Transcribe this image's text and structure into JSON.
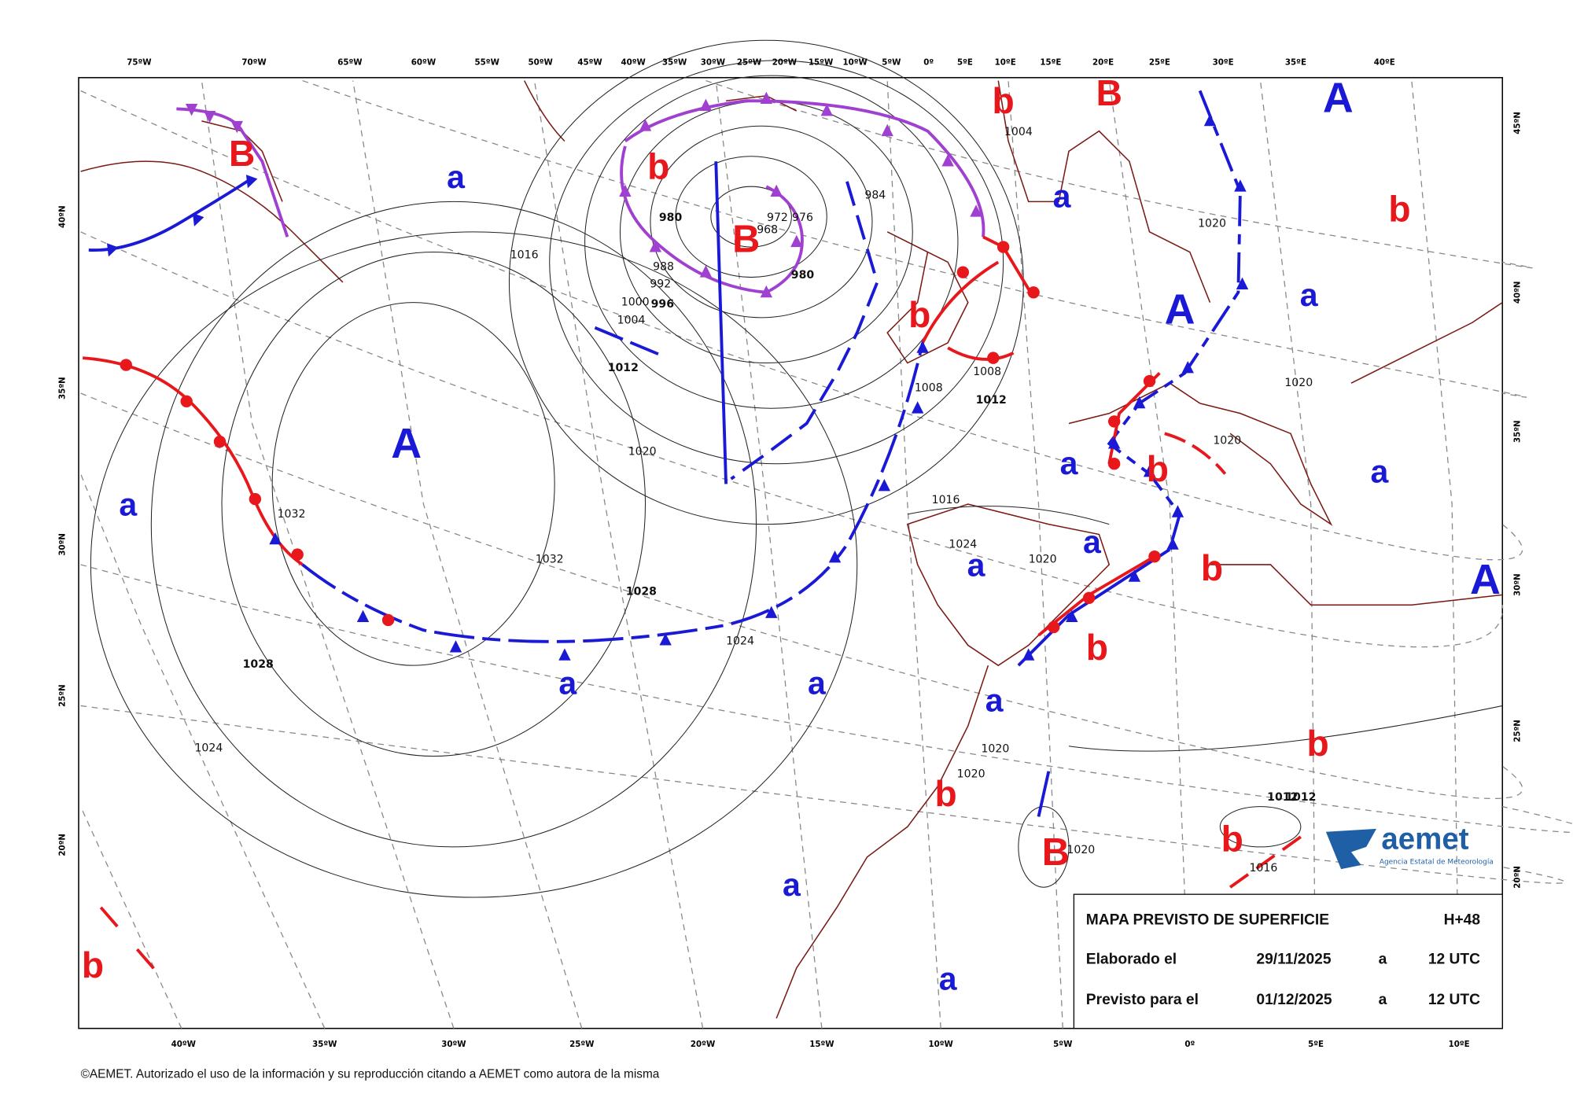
{
  "header": {
    "top_longitudes": [
      "75ºW",
      "70ºW",
      "65ºW",
      "60ºW",
      "55ºW",
      "50ºW",
      "45ºW",
      "40ºW",
      "35ºW",
      "30ºW",
      "25ºW",
      "20ºW",
      "15ºW",
      "10ºW",
      "5ºW",
      "0º",
      "5ºE",
      "10ºE",
      "15ºE",
      "20ºE",
      "25ºE",
      "30ºE",
      "35ºE",
      "40ºE"
    ],
    "bottom_longitudes": [
      "40ºW",
      "35ºW",
      "30ºW",
      "25ºW",
      "20ºW",
      "15ºW",
      "10ºW",
      "5ºW",
      "0º",
      "5ºE",
      "10ºE"
    ],
    "left_latitudes": [
      "40ºN",
      "35ºN",
      "30ºN",
      "25ºN",
      "20ºN"
    ],
    "right_latitudes": [
      "45ºN",
      "40ºN",
      "35ºN",
      "30ºN",
      "25ºN",
      "20ºN"
    ]
  },
  "centers": [
    {
      "label": "A",
      "color": "#1a1ad6"
    },
    {
      "label": "a",
      "color": "#1a1ad6"
    },
    {
      "label": "a",
      "color": "#1a1ad6"
    },
    {
      "label": "a",
      "color": "#1a1ad6"
    },
    {
      "label": "a",
      "color": "#1a1ad6"
    },
    {
      "label": "a",
      "color": "#1a1ad6"
    },
    {
      "label": "a",
      "color": "#1a1ad6"
    },
    {
      "label": "a",
      "color": "#1a1ad6"
    },
    {
      "label": "a",
      "color": "#1a1ad6"
    },
    {
      "label": "a",
      "color": "#1a1ad6"
    },
    {
      "label": "a",
      "color": "#1a1ad6"
    },
    {
      "label": "a",
      "color": "#1a1ad6"
    },
    {
      "label": "a",
      "color": "#1a1ad6"
    },
    {
      "label": "a",
      "color": "#1a1ad6"
    },
    {
      "label": "A",
      "color": "#1a1ad6"
    },
    {
      "label": "A",
      "color": "#1a1ad6"
    },
    {
      "label": "A",
      "color": "#1a1ad6"
    },
    {
      "label": "B",
      "color": "#e8171c"
    },
    {
      "label": "B",
      "color": "#e8171c"
    },
    {
      "label": "B",
      "color": "#e8171c"
    },
    {
      "label": "B",
      "color": "#e8171c"
    },
    {
      "label": "b",
      "color": "#e8171c"
    },
    {
      "label": "b",
      "color": "#e8171c"
    },
    {
      "label": "b",
      "color": "#e8171c"
    },
    {
      "label": "b",
      "color": "#e8171c"
    },
    {
      "label": "b",
      "color": "#e8171c"
    },
    {
      "label": "b",
      "color": "#e8171c"
    },
    {
      "label": "b",
      "color": "#e8171c"
    },
    {
      "label": "b",
      "color": "#e8171c"
    },
    {
      "label": "b",
      "color": "#e8171c"
    },
    {
      "label": "b",
      "color": "#e8171c"
    },
    {
      "label": "b",
      "color": "#e8171c"
    }
  ],
  "isobar_labels": [
    "1016",
    "1032",
    "1032",
    "1028",
    "1028",
    "1024",
    "1024",
    "1020",
    "1012",
    "1008",
    "1004",
    "1000",
    "996",
    "992",
    "988",
    "980",
    "980",
    "984",
    "972",
    "976",
    "968",
    "1004",
    "1008",
    "1012",
    "1016",
    "1020",
    "1024",
    "1020",
    "1020",
    "1012",
    "1016",
    "1012",
    "1020",
    "1020",
    "1020",
    "1020"
  ],
  "info_box": {
    "title": "MAPA PREVISTO DE SUPERFICIE",
    "step": "H+48",
    "row1": [
      "Elaborado el",
      "29/11/2025",
      "a",
      "12 UTC"
    ],
    "row2": [
      "Previsto para el",
      "01/12/2025",
      "a",
      "12 UTC"
    ]
  },
  "logo": {
    "name": "aemet",
    "subtitle": "Agencia Estatal de Meteorología"
  },
  "copyright": "©AEMET. Autorizado el uso de la información y su reproducción citando a AEMET como autora de la misma"
}
